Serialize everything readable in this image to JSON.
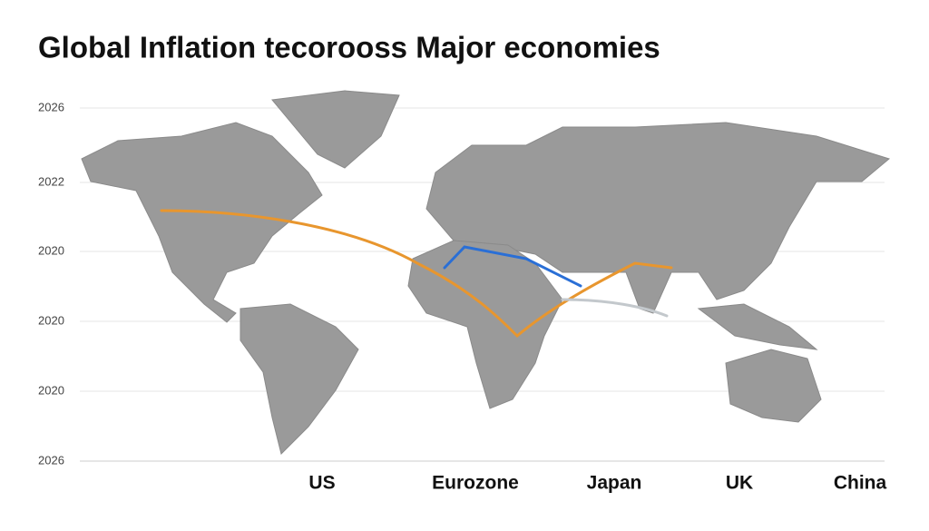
{
  "title": "Global Inflation tecorooss Major economies",
  "y_labels": [
    "2026",
    "2022",
    "2020",
    "2020",
    "2020",
    "2026"
  ],
  "x_labels": [
    "US",
    "Eurozone",
    "Japan",
    "UK",
    "China"
  ]
}
